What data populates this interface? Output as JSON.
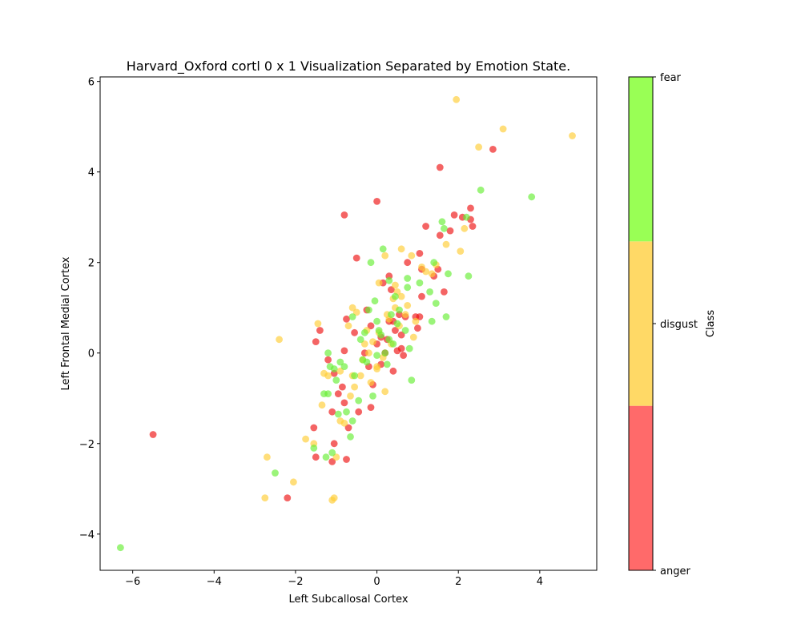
{
  "chart_data": {
    "type": "scatter",
    "title": "Harvard_Oxford cortl 0 x 1 Visualization Separated by Emotion State.",
    "xlabel": "Left Subcallosal Cortex",
    "ylabel": "Left Frontal Medial Cortex",
    "xlim": [
      -6.8,
      5.4
    ],
    "ylim": [
      -4.8,
      6.1
    ],
    "xticks": [
      -6,
      -4,
      -2,
      0,
      2,
      4
    ],
    "yticks": [
      -4,
      -2,
      0,
      2,
      4,
      6
    ],
    "colorbar": {
      "label": "Class",
      "classes": [
        "anger",
        "disgust",
        "fear"
      ],
      "colors": [
        "#ff6a6a",
        "#ffd966",
        "#99ff55"
      ]
    },
    "series": [
      {
        "name": "anger",
        "color": "#ee1111",
        "points": [
          [
            -5.5,
            -1.8
          ],
          [
            -2.2,
            -3.2
          ],
          [
            -1.5,
            -2.3
          ],
          [
            -1.55,
            -1.65
          ],
          [
            -1.1,
            -2.4
          ],
          [
            -0.75,
            -2.35
          ],
          [
            -1.05,
            -2.0
          ],
          [
            -0.95,
            -0.9
          ],
          [
            -0.8,
            -1.1
          ],
          [
            -0.7,
            -1.65
          ],
          [
            -1.1,
            -1.3
          ],
          [
            -0.85,
            -0.75
          ],
          [
            -0.45,
            -1.3
          ],
          [
            -0.15,
            -1.2
          ],
          [
            -1.4,
            0.5
          ],
          [
            -1.5,
            0.25
          ],
          [
            -1.2,
            -0.15
          ],
          [
            -1.05,
            -0.45
          ],
          [
            -0.8,
            0.05
          ],
          [
            -0.75,
            0.75
          ],
          [
            -0.55,
            0.45
          ],
          [
            -0.5,
            2.1
          ],
          [
            -0.8,
            3.05
          ],
          [
            0.0,
            3.35
          ],
          [
            -0.3,
            0.0
          ],
          [
            -0.2,
            -0.3
          ],
          [
            -0.15,
            0.6
          ],
          [
            -0.1,
            -0.7
          ],
          [
            0.0,
            0.2
          ],
          [
            0.1,
            -0.25
          ],
          [
            0.2,
            0.0
          ],
          [
            0.25,
            0.3
          ],
          [
            0.3,
            1.7
          ],
          [
            0.35,
            1.4
          ],
          [
            0.4,
            -0.4
          ],
          [
            0.4,
            0.7
          ],
          [
            0.45,
            0.5
          ],
          [
            0.5,
            0.05
          ],
          [
            0.55,
            0.85
          ],
          [
            0.6,
            0.4
          ],
          [
            0.6,
            0.1
          ],
          [
            0.65,
            -0.05
          ],
          [
            0.7,
            0.8
          ],
          [
            0.75,
            2.0
          ],
          [
            0.95,
            0.8
          ],
          [
            1.0,
            0.55
          ],
          [
            1.05,
            0.8
          ],
          [
            1.1,
            1.25
          ],
          [
            1.1,
            1.85
          ],
          [
            1.05,
            2.2
          ],
          [
            1.2,
            2.8
          ],
          [
            1.4,
            1.7
          ],
          [
            1.5,
            1.85
          ],
          [
            1.55,
            2.6
          ],
          [
            1.65,
            1.35
          ],
          [
            1.8,
            2.7
          ],
          [
            1.55,
            4.1
          ],
          [
            1.9,
            3.05
          ],
          [
            2.1,
            3.0
          ],
          [
            2.3,
            2.95
          ],
          [
            2.35,
            2.8
          ],
          [
            2.3,
            3.2
          ],
          [
            2.85,
            4.5
          ],
          [
            0.15,
            1.55
          ],
          [
            0.1,
            0.35
          ],
          [
            -0.25,
            0.95
          ],
          [
            0.3,
            0.7
          ]
        ]
      },
      {
        "name": "disgust",
        "color": "#ffcc33",
        "points": [
          [
            -2.4,
            0.3
          ],
          [
            -2.7,
            -2.3
          ],
          [
            -2.75,
            -3.2
          ],
          [
            -2.05,
            -2.85
          ],
          [
            -1.75,
            -1.9
          ],
          [
            -1.55,
            -2.0
          ],
          [
            -1.45,
            0.65
          ],
          [
            -1.35,
            -1.15
          ],
          [
            -1.3,
            -0.45
          ],
          [
            -1.1,
            -3.25
          ],
          [
            -1.05,
            -3.2
          ],
          [
            -1.0,
            -2.3
          ],
          [
            -0.9,
            -1.5
          ],
          [
            -0.8,
            -1.55
          ],
          [
            -0.65,
            -0.95
          ],
          [
            -0.6,
            1.0
          ],
          [
            -0.55,
            -0.75
          ],
          [
            -0.5,
            0.9
          ],
          [
            -0.4,
            -0.5
          ],
          [
            -0.35,
            -0.15
          ],
          [
            -0.3,
            0.2
          ],
          [
            -0.2,
            0.0
          ],
          [
            -0.15,
            -0.65
          ],
          [
            -0.1,
            0.25
          ],
          [
            0.0,
            -0.35
          ],
          [
            0.05,
            0.45
          ],
          [
            0.15,
            -0.1
          ],
          [
            0.2,
            2.15
          ],
          [
            0.25,
            0.85
          ],
          [
            0.3,
            0.75
          ],
          [
            0.35,
            0.2
          ],
          [
            0.4,
            1.2
          ],
          [
            0.45,
            1.0
          ],
          [
            0.5,
            1.35
          ],
          [
            0.55,
            0.6
          ],
          [
            0.6,
            1.25
          ],
          [
            0.6,
            2.3
          ],
          [
            0.7,
            0.85
          ],
          [
            0.75,
            1.05
          ],
          [
            0.85,
            2.15
          ],
          [
            0.9,
            0.35
          ],
          [
            0.95,
            0.7
          ],
          [
            1.1,
            1.9
          ],
          [
            1.2,
            1.8
          ],
          [
            1.35,
            1.75
          ],
          [
            1.45,
            1.95
          ],
          [
            1.7,
            2.4
          ],
          [
            1.95,
            5.6
          ],
          [
            2.05,
            2.25
          ],
          [
            2.15,
            2.75
          ],
          [
            2.5,
            4.55
          ],
          [
            3.1,
            4.95
          ],
          [
            4.8,
            4.8
          ],
          [
            -0.7,
            0.6
          ],
          [
            -0.25,
            0.5
          ],
          [
            0.2,
            -0.85
          ],
          [
            -1.2,
            -0.5
          ],
          [
            -0.6,
            -0.5
          ],
          [
            0.45,
            1.5
          ],
          [
            0.05,
            1.55
          ],
          [
            -0.9,
            -0.4
          ],
          [
            0.0,
            -0.3
          ]
        ]
      },
      {
        "name": "fear",
        "color": "#66ee33",
        "points": [
          [
            -6.3,
            -4.3
          ],
          [
            -2.5,
            -2.65
          ],
          [
            -1.55,
            -2.1
          ],
          [
            -1.25,
            -2.3
          ],
          [
            -1.1,
            -2.2
          ],
          [
            -0.95,
            -1.35
          ],
          [
            -1.2,
            -0.9
          ],
          [
            -1.3,
            -0.9
          ],
          [
            -1.2,
            0.0
          ],
          [
            -1.15,
            -0.3
          ],
          [
            -1.05,
            -0.35
          ],
          [
            -0.9,
            -0.2
          ],
          [
            -0.75,
            -1.3
          ],
          [
            -0.65,
            -1.85
          ],
          [
            -0.6,
            -1.5
          ],
          [
            -0.55,
            -0.5
          ],
          [
            -0.45,
            -1.05
          ],
          [
            -0.35,
            -0.15
          ],
          [
            -0.3,
            0.45
          ],
          [
            -0.25,
            -0.2
          ],
          [
            -0.2,
            0.95
          ],
          [
            -0.15,
            2.0
          ],
          [
            -0.1,
            -0.95
          ],
          [
            -0.05,
            1.15
          ],
          [
            0.0,
            -0.05
          ],
          [
            0.05,
            0.5
          ],
          [
            0.1,
            0.4
          ],
          [
            0.15,
            2.3
          ],
          [
            0.2,
            0.0
          ],
          [
            0.25,
            -0.25
          ],
          [
            0.3,
            1.6
          ],
          [
            0.35,
            0.85
          ],
          [
            0.4,
            0.2
          ],
          [
            0.45,
            1.25
          ],
          [
            0.5,
            0.65
          ],
          [
            0.55,
            0.95
          ],
          [
            0.7,
            0.5
          ],
          [
            0.75,
            1.45
          ],
          [
            0.75,
            1.65
          ],
          [
            0.8,
            0.1
          ],
          [
            0.85,
            -0.6
          ],
          [
            1.05,
            1.55
          ],
          [
            1.3,
            1.35
          ],
          [
            1.4,
            2.0
          ],
          [
            1.45,
            1.1
          ],
          [
            1.35,
            0.7
          ],
          [
            1.7,
            0.8
          ],
          [
            1.75,
            1.75
          ],
          [
            1.6,
            2.9
          ],
          [
            1.65,
            2.75
          ],
          [
            2.25,
            1.7
          ],
          [
            2.2,
            3.0
          ],
          [
            2.55,
            3.6
          ],
          [
            3.8,
            3.45
          ],
          [
            -0.6,
            0.8
          ],
          [
            -0.4,
            0.3
          ],
          [
            0.0,
            0.7
          ],
          [
            -0.8,
            -0.3
          ],
          [
            -1.0,
            -0.6
          ],
          [
            0.3,
            0.3
          ]
        ]
      }
    ]
  }
}
